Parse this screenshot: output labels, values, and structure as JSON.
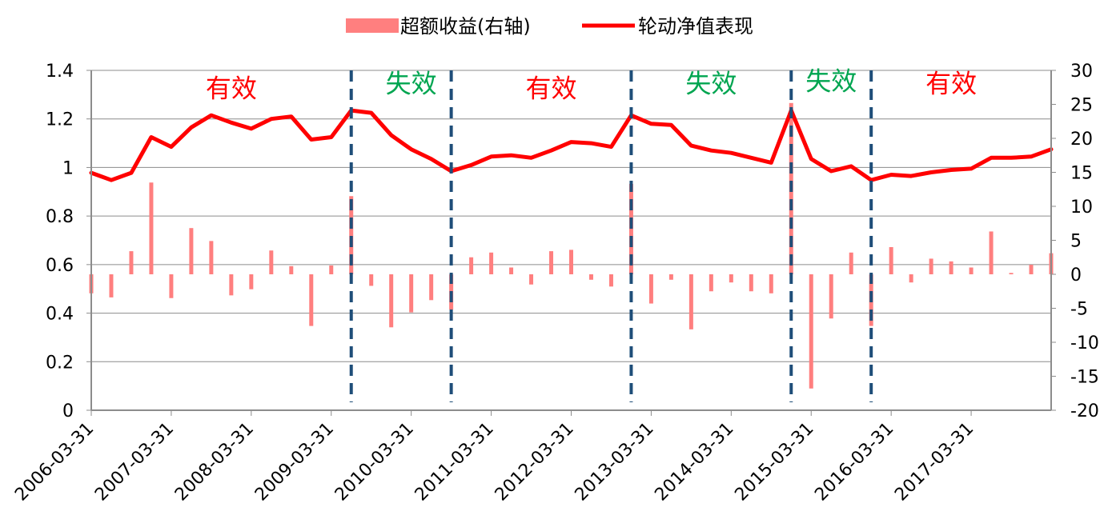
{
  "chart_data": {
    "type": "bar+line",
    "title": "",
    "legend": {
      "placement": "top-center",
      "items": [
        {
          "name": "超额收益(右轴)",
          "kind": "bar",
          "color": "#ff7f7f"
        },
        {
          "name": "轮动净值表现",
          "kind": "line",
          "color": "#ff0000"
        }
      ]
    },
    "x_tick_labels": [
      "2006-03-31",
      "2007-03-31",
      "2008-03-31",
      "2009-03-31",
      "2010-03-31",
      "2011-03-31",
      "2012-03-31",
      "2013-03-31",
      "2014-03-31",
      "2015-03-31",
      "2016-03-31",
      "2017-03-31"
    ],
    "y_left": {
      "min": 0,
      "max": 1.4,
      "ticks": [
        "0",
        "0.2",
        "0.4",
        "0.6",
        "0.8",
        "1",
        "1.2",
        "1.4"
      ]
    },
    "y_right": {
      "min": -20,
      "max": 30,
      "ticks": [
        "-20",
        "-15",
        "-10",
        "-5",
        "0",
        "5",
        "10",
        "15",
        "20",
        "25",
        "30"
      ]
    },
    "grid": true,
    "x": [
      "2006-03-31",
      "2006-06-30",
      "2006-09-30",
      "2006-12-31",
      "2007-03-31",
      "2007-06-30",
      "2007-09-30",
      "2007-12-31",
      "2008-03-31",
      "2008-06-30",
      "2008-09-30",
      "2008-12-31",
      "2009-03-31",
      "2009-06-30",
      "2009-09-30",
      "2009-12-31",
      "2010-03-31",
      "2010-06-30",
      "2010-09-30",
      "2010-12-31",
      "2011-03-31",
      "2011-06-30",
      "2011-09-30",
      "2011-12-31",
      "2012-03-31",
      "2012-06-30",
      "2012-09-30",
      "2012-12-31",
      "2013-03-31",
      "2013-06-30",
      "2013-09-30",
      "2013-12-31",
      "2014-03-31",
      "2014-06-30",
      "2014-09-30",
      "2014-12-31",
      "2015-03-31",
      "2015-06-30",
      "2015-09-30",
      "2015-12-31",
      "2016-03-31",
      "2016-06-30",
      "2016-09-30",
      "2016-12-31",
      "2017-03-31",
      "2017-06-30",
      "2017-09-30",
      "2017-12-31",
      "2018-03-31"
    ],
    "series": [
      {
        "name": "超额收益(右轴)",
        "type": "bar",
        "axis": "right",
        "color": "#ff7f7f",
        "values": [
          -2.8,
          -3.4,
          3.4,
          13.5,
          -3.5,
          6.8,
          4.9,
          -3.1,
          -2.2,
          3.5,
          1.2,
          -7.6,
          1.3,
          11.5,
          -1.7,
          -7.8,
          -5.6,
          -3.8,
          -5.2,
          2.5,
          3.2,
          1.0,
          -1.5,
          3.4,
          3.6,
          -0.8,
          -1.8,
          13.3,
          -4.3,
          -0.8,
          -8.1,
          -2.5,
          -1.2,
          -2.5,
          -2.8,
          25.2,
          -16.8,
          -6.5,
          3.2,
          -7.6,
          4.0,
          -1.2,
          2.3,
          1.9,
          1.0,
          6.3,
          0.2,
          1.4,
          3.1
        ]
      },
      {
        "name": "轮动净值表现",
        "type": "line",
        "axis": "left",
        "color": "#ff0000",
        "values": [
          0.978,
          0.948,
          0.978,
          1.125,
          1.085,
          1.165,
          1.215,
          1.185,
          1.16,
          1.2,
          1.21,
          1.115,
          1.125,
          1.235,
          1.225,
          1.133,
          1.075,
          1.035,
          0.985,
          1.01,
          1.045,
          1.05,
          1.04,
          1.07,
          1.105,
          1.1,
          1.085,
          1.215,
          1.18,
          1.175,
          1.09,
          1.07,
          1.06,
          1.04,
          1.02,
          1.235,
          1.035,
          0.985,
          1.005,
          0.948,
          0.97,
          0.965,
          0.98,
          0.99,
          0.995,
          1.04,
          1.04,
          1.045,
          1.075
        ]
      }
    ],
    "regime_dividers": [
      "2009-06-30",
      "2010-09-30",
      "2012-12-31",
      "2014-12-31",
      "2015-12-31"
    ],
    "annotations": [
      {
        "text": "有效",
        "color": "#ff0000",
        "x": "2007-12-31",
        "y_left": 1.29
      },
      {
        "text": "失效",
        "color": "#00a550",
        "x": "2010-03-31",
        "y_left": 1.31
      },
      {
        "text": "有效",
        "color": "#ff0000",
        "x": "2011-12-31",
        "y_left": 1.29
      },
      {
        "text": "失效",
        "color": "#00a550",
        "x": "2013-12-31",
        "y_left": 1.31
      },
      {
        "text": "失效",
        "color": "#00a550",
        "x": "2015-06-30",
        "y_left": 1.32
      },
      {
        "text": "有效",
        "color": "#ff0000",
        "x": "2016-12-31",
        "y_left": 1.31
      }
    ],
    "divider_color": "#1f4e79"
  }
}
